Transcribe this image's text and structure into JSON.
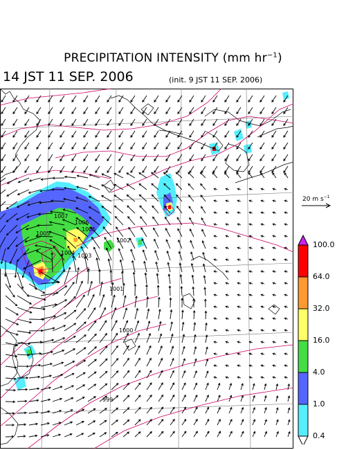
{
  "title": {
    "main": "PRECIPITATION INTENSITY (mm hr",
    "exp": "−1",
    "close": ")"
  },
  "datetime": "14 JST 11 SEP. 2006",
  "init_text": "(init. 9 JST 11 SEP. 2006)",
  "wind_scale": {
    "label": "20 m s",
    "exp": "−1"
  },
  "legend": {
    "ticks": [
      "100.0",
      "64.0",
      "32.0",
      "16.0",
      "4.0",
      "1.0",
      "0.4"
    ],
    "colors": [
      "#ff0000",
      "#ff9933",
      "#ffff66",
      "#44dd44",
      "#5566ff",
      "#55eeff"
    ],
    "over_color": "#cc22ee",
    "under_color": "#ffffff"
  },
  "isobar_labels": [
    "1007",
    "1006",
    "1005",
    "1004",
    "1003",
    "1002",
    "1001",
    "1000",
    "999"
  ],
  "map_colors": {
    "coast": "#000000",
    "grid": "#777777",
    "isobar": "#cc0066"
  }
}
